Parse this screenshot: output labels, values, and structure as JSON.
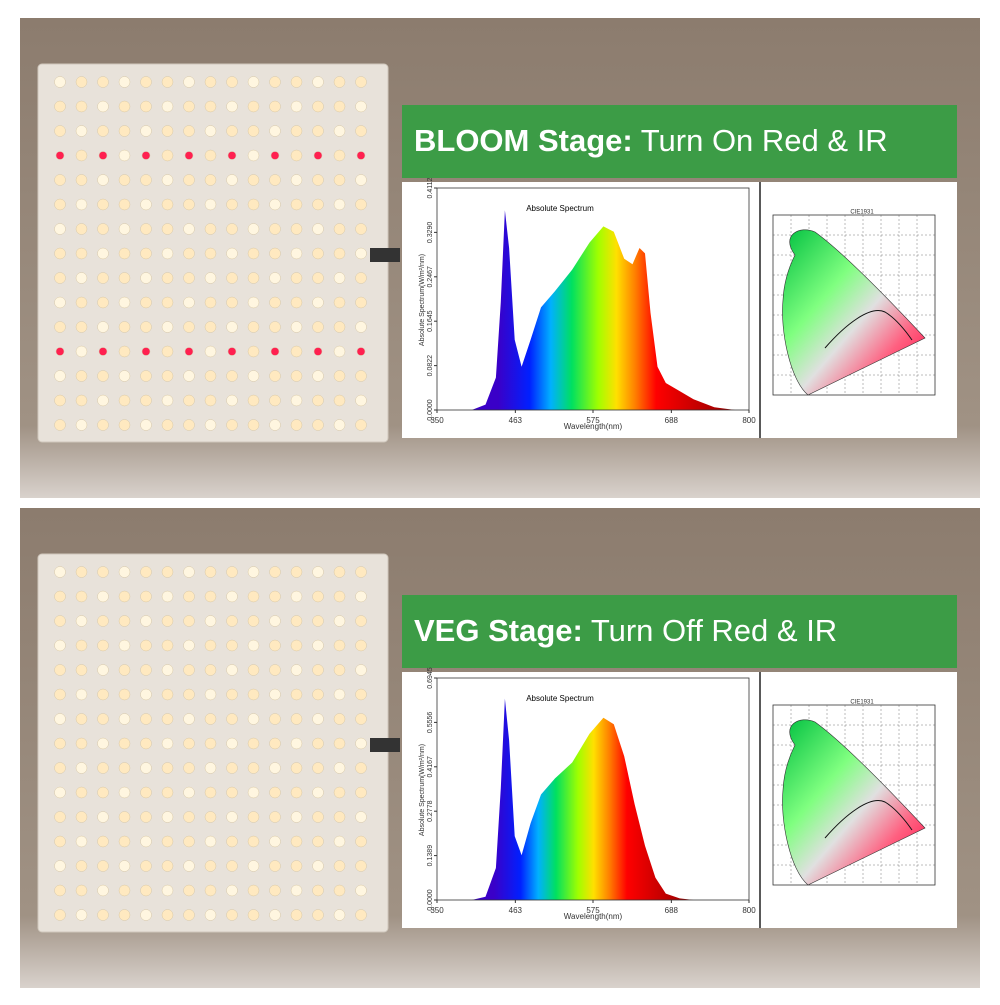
{
  "panels": [
    {
      "banner": {
        "bold": "BLOOM Stage:",
        "rest": "Turn On Red & IR"
      },
      "spectrum": {
        "title": "Absolute Spectrum",
        "y_label": "Absolute Spectrum(W/m²/nm)",
        "x_label": "Wavelength(nm)",
        "xlim": [
          350,
          800
        ],
        "xticks": [
          350,
          463,
          575,
          688,
          800
        ],
        "ylim": [
          0,
          0.4112
        ],
        "yticks": [
          {
            "value": 0,
            "label": "0.0000"
          },
          {
            "value": 0.0822,
            "label": "0.0822"
          },
          {
            "value": 0.1645,
            "label": "0.1645"
          },
          {
            "value": 0.2467,
            "label": "0.2467"
          },
          {
            "value": 0.329,
            "label": "0.3290"
          },
          {
            "value": 0.4112,
            "label": "0.4112"
          }
        ],
        "x": [
          400,
          420,
          435,
          442,
          448,
          454,
          462,
          472,
          485,
          500,
          520,
          545,
          570,
          590,
          605,
          620,
          632,
          642,
          650,
          658,
          668,
          680,
          700,
          720,
          750,
          780
        ],
        "values": [
          0,
          0.01,
          0.06,
          0.2,
          0.37,
          0.3,
          0.13,
          0.08,
          0.13,
          0.19,
          0.22,
          0.26,
          0.31,
          0.34,
          0.33,
          0.28,
          0.27,
          0.3,
          0.29,
          0.18,
          0.08,
          0.05,
          0.035,
          0.02,
          0.005,
          0
        ]
      },
      "cie": {
        "title": "CIE1931"
      }
    },
    {
      "banner": {
        "bold": "VEG Stage:",
        "rest": "Turn Off Red & IR"
      },
      "spectrum": {
        "title": "Absolute Spectrum",
        "y_label": "Absolute Spectrum(W/m²/nm)",
        "x_label": "Wavelength(nm)",
        "xlim": [
          350,
          800
        ],
        "xticks": [
          350,
          463,
          575,
          688,
          800
        ],
        "ylim": [
          0,
          0.6945
        ],
        "yticks": [
          {
            "value": 0,
            "label": "0.0000"
          },
          {
            "value": 0.1389,
            "label": "0.1389"
          },
          {
            "value": 0.2778,
            "label": "0.2778"
          },
          {
            "value": 0.4167,
            "label": "0.4167"
          },
          {
            "value": 0.5556,
            "label": "0.5556"
          },
          {
            "value": 0.6945,
            "label": "0.6945"
          }
        ],
        "x": [
          400,
          420,
          435,
          442,
          448,
          454,
          462,
          472,
          485,
          500,
          520,
          545,
          570,
          590,
          605,
          620,
          635,
          650,
          665,
          680,
          700,
          720
        ],
        "values": [
          0,
          0.01,
          0.1,
          0.35,
          0.63,
          0.5,
          0.2,
          0.14,
          0.24,
          0.33,
          0.38,
          0.43,
          0.52,
          0.57,
          0.55,
          0.45,
          0.3,
          0.17,
          0.07,
          0.02,
          0.005,
          0
        ]
      },
      "cie": {
        "title": "CIE1931"
      }
    }
  ]
}
